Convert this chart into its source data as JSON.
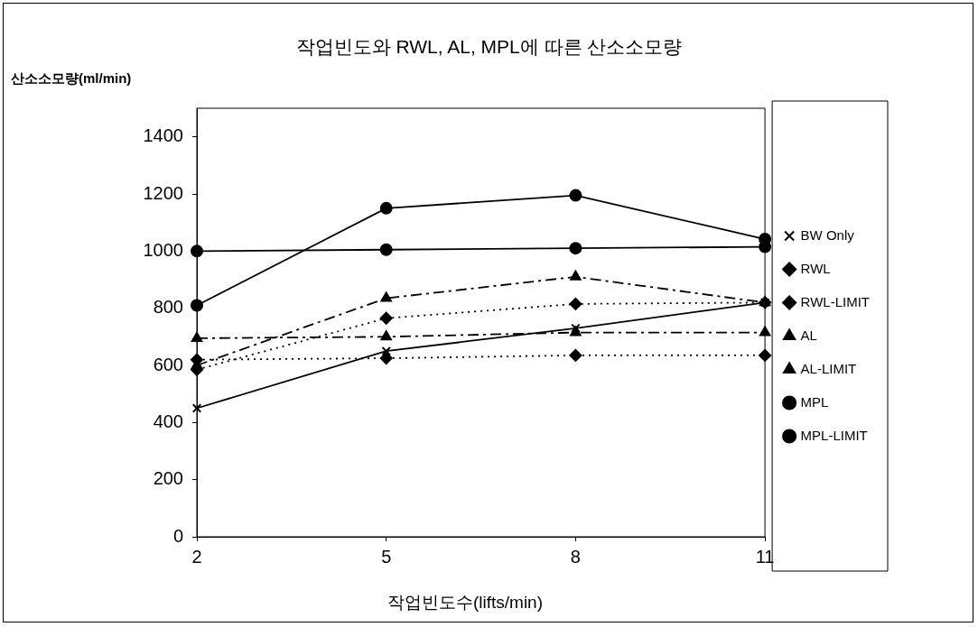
{
  "chart_data": {
    "type": "line",
    "title": "작업빈도와 RWL, AL, MPL에 따른 산소소모량",
    "ylabel": "산소소모량(ml/min)",
    "xlabel": "작업빈도수(lifts/min)",
    "categories": [
      "2",
      "5",
      "8",
      "11"
    ],
    "ylim": [
      0,
      1500
    ],
    "yticks": [
      0,
      200,
      400,
      600,
      800,
      1000,
      1200,
      1400
    ],
    "grid": false,
    "legend": "right",
    "series": [
      {
        "name": "BW Only",
        "color": "#000000",
        "values": [
          450,
          650,
          730,
          820
        ],
        "marker": "cross",
        "line_style": "solid"
      },
      {
        "name": "RWL",
        "color": "#000000",
        "values": [
          585,
          765,
          815,
          820
        ],
        "marker": "diamond",
        "line_style": "dotted"
      },
      {
        "name": "RWL-LIMIT",
        "color": "#000000",
        "values": [
          620,
          625,
          635,
          635
        ],
        "marker": "diamond",
        "line_style": "dotted"
      },
      {
        "name": "AL",
        "color": "#000000",
        "values": [
          600,
          835,
          910,
          820
        ],
        "marker": "triangle",
        "line_style": "dashed"
      },
      {
        "name": "AL-LIMIT",
        "color": "#000000",
        "values": [
          695,
          700,
          715,
          715
        ],
        "marker": "triangle",
        "line_style": "dashed"
      },
      {
        "name": "MPL",
        "color": "#000000",
        "values": [
          810,
          1150,
          1195,
          1042
        ],
        "marker": "circle",
        "line_style": "solid"
      },
      {
        "name": "MPL-LIMIT",
        "color": "#000000",
        "values": [
          1000,
          1005,
          1010,
          1015
        ],
        "marker": "circle",
        "line_style": "solid"
      }
    ]
  }
}
